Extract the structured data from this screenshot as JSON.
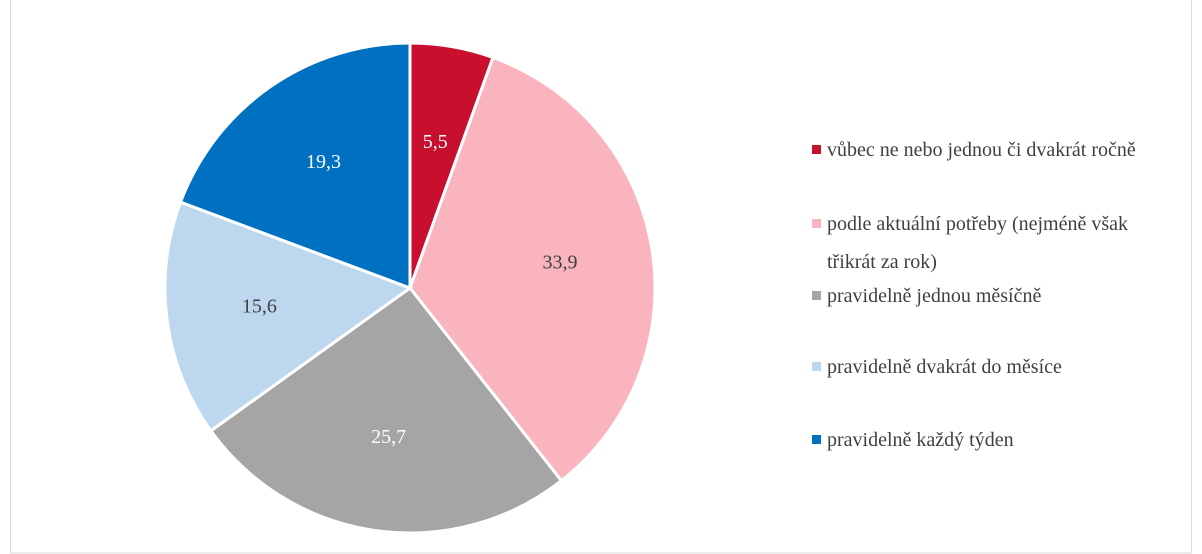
{
  "chart_data": {
    "type": "pie",
    "categories": [
      "vůbec ne nebo jednou či dvakrát ročně",
      "podle aktuální potřeby (nejméně však třikrát za rok)",
      "pravidelně jednou měsíčně",
      "pravidelně dvakrát do měsíce",
      "pravidelně každý týden"
    ],
    "values": [
      5.5,
      33.9,
      25.7,
      15.6,
      19.3
    ],
    "value_labels": [
      "5,5",
      "33,9",
      "25,7",
      "15,6",
      "19,3"
    ],
    "colors": [
      "#c80f2e",
      "#f9b4be",
      "#a5a5a5",
      "#bdd7ee",
      "#0070c0"
    ],
    "label_colors": [
      "#ffffff",
      "#404040",
      "#ffffff",
      "#404040",
      "#ffffff"
    ],
    "legend": "right"
  }
}
